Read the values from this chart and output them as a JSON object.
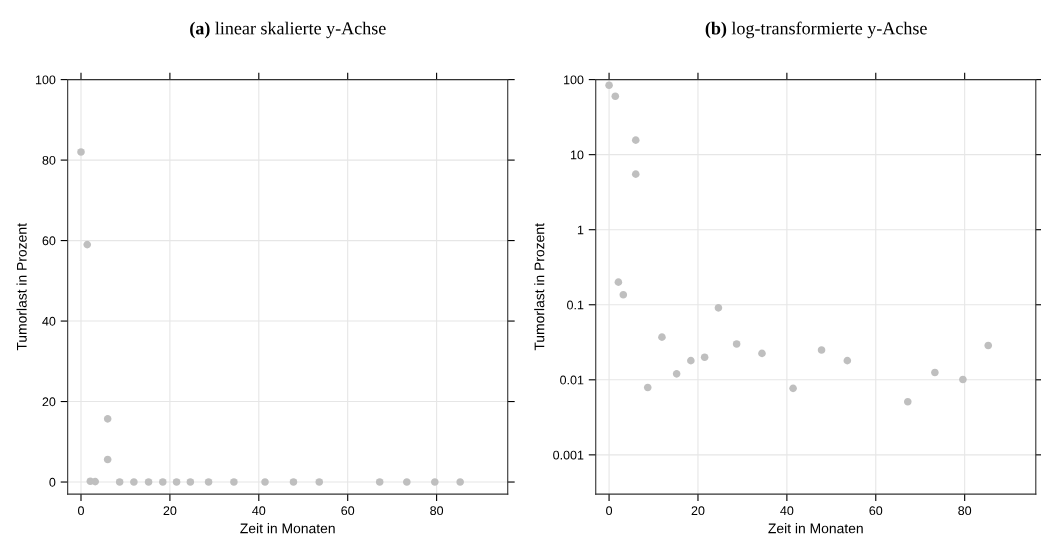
{
  "chart_data": [
    {
      "type": "scatter",
      "title": "(a) linear skalierte y-Achse",
      "xlabel": "Zeit in Monaten",
      "ylabel": "Tumorlast in Prozent",
      "x": [
        0,
        1.4,
        2.1,
        3.2,
        6.0,
        6.0,
        8.7,
        11.9,
        15.2,
        18.4,
        21.5,
        24.6,
        28.7,
        34.4,
        41.4,
        47.8,
        53.6,
        67.2,
        73.3,
        79.6,
        85.3
      ],
      "series": [
        {
          "color": "#bfbfbf",
          "values": [
            82,
            59,
            0.2,
            0.1,
            15.7,
            5.6,
            0,
            0,
            0,
            0,
            0,
            0,
            0,
            0,
            0,
            0,
            0,
            0,
            0,
            0,
            0
          ]
        }
      ],
      "xlim": [
        -3,
        96
      ],
      "xticks": [
        0,
        20,
        40,
        60,
        80
      ],
      "ylim": [
        -3,
        100
      ],
      "yticks": [
        0,
        20,
        40,
        60,
        80,
        100
      ],
      "grid": true,
      "marker": "circle"
    },
    {
      "type": "scatter",
      "title": "(b) log-transformierte y-Achse",
      "xlabel": "Zeit in Monaten",
      "ylabel": "Tumorlast in Prozent",
      "x": [
        0,
        1.4,
        2.1,
        3.2,
        6.0,
        6.0,
        8.7,
        11.9,
        15.2,
        18.4,
        21.5,
        24.6,
        28.7,
        34.4,
        41.4,
        47.8,
        53.6,
        67.2,
        73.3,
        79.6,
        85.3
      ],
      "series": [
        {
          "color": "#bfbfbf",
          "values": [
            84,
            60,
            0.2,
            0.136,
            15.6,
            5.5,
            0.0079,
            0.037,
            0.012,
            0.018,
            0.02,
            0.091,
            0.03,
            0.0225,
            0.0077,
            0.025,
            0.018,
            0.0051,
            0.0125,
            0.0101,
            0.0287
          ]
        }
      ],
      "xlim": [
        -3,
        96
      ],
      "xticks": [
        0,
        20,
        40,
        60,
        80
      ],
      "ylim": [
        0.0003,
        100
      ],
      "yticks": [
        0.001,
        0.01,
        0.1,
        1,
        10,
        100
      ],
      "log": "y",
      "grid": true,
      "marker": "circle"
    }
  ]
}
